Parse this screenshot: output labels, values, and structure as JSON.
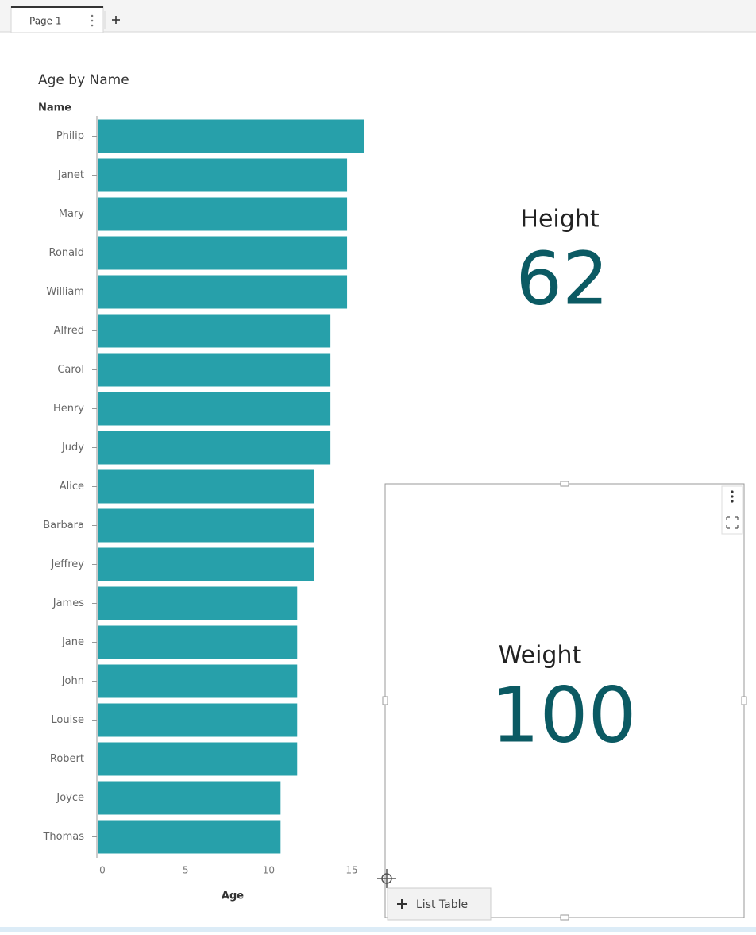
{
  "tab": {
    "label": "Page 1"
  },
  "chart_data": {
    "type": "bar",
    "orientation": "horizontal",
    "title": "Age by Name",
    "y_label": "Name",
    "x_label": "Age",
    "categories": [
      "Philip",
      "Janet",
      "Mary",
      "Ronald",
      "William",
      "Alfred",
      "Carol",
      "Henry",
      "Judy",
      "Alice",
      "Barbara",
      "Jeffrey",
      "James",
      "Jane",
      "John",
      "Louise",
      "Robert",
      "Joyce",
      "Thomas"
    ],
    "values": [
      16,
      15,
      15,
      15,
      15,
      14,
      14,
      14,
      14,
      13,
      13,
      13,
      12,
      12,
      12,
      12,
      12,
      11,
      11
    ],
    "color": "#27a0aa",
    "xlim": [
      0,
      16
    ],
    "xticks": [
      0,
      5,
      10,
      15
    ],
    "grid": false
  },
  "kpis": [
    {
      "label": "Height",
      "value": 62
    },
    {
      "label": "Weight",
      "value": 100
    }
  ],
  "drop_hint": "List Table"
}
